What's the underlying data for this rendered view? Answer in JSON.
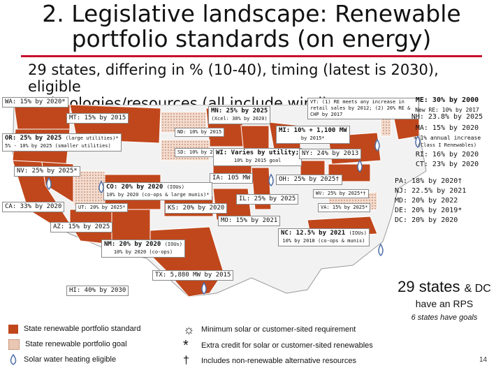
{
  "slide": {
    "title_line1": "2. Legislative landscape: Renewable",
    "title_line2": "portfolio standards (on energy)",
    "subtitle_line1": "29 states, differing in % (10-40), timing (latest is 2030), eligible",
    "subtitle_line2": "technologies/resources (all include wind)",
    "page_number": "14"
  },
  "states": {
    "wa": "WA: 15% by 2020*",
    "mt": "MT: 15% by 2015",
    "mn_main": "MN: 25% by 2025",
    "mn_sub": "(Xcel: 30% by 2020)",
    "or_main": "OR: 25% by 2025",
    "or_note": "(large utilities)*",
    "or_sub": "5% - 10% by 2025 (smaller utilities)",
    "nd": "ND: 10% by 2015",
    "sd": "SD: 10% by 2015",
    "wi_main": "WI: Varies by utility;",
    "wi_sub": "10% by 2015 goal",
    "mi_main": "MI: 10% + 1,100 MW",
    "mi_sub": "by 2015*",
    "ny": "NY: 24% by 2013",
    "vt": "VT: (1) RE meets any increase in retail sales by 2012; (2) 20% RE & CHP by 2017",
    "nv": "NV: 25% by 2025*",
    "ia": "IA: 105 MW",
    "oh": "OH: 25% by 2025†",
    "co_main": "CO: 20% by 2020",
    "co_note": "(IOUs)",
    "co_sub": "10% by 2020 (co-ops & large munis)*",
    "ca": "CA: 33% by 2020",
    "ut": "UT: 20% by 2025*",
    "ks": "KS: 20% by 2020",
    "il": "IL: 25% by 2025",
    "wv": "WV: 25% by 2025*†",
    "va": "VA: 15% by 2025*",
    "mo": "MO: 15% by 2021",
    "az": "AZ: 15% by 2025",
    "nc_main": "NC: 12.5% by 2021",
    "nc_note": "(IOUs)",
    "nc_sub": "10% by 2018 (co-ops & munis)",
    "nm_main": "NM: 20% by 2020",
    "nm_note": "(IOUs)",
    "nm_sub": "10% by 2020 (co-ops)",
    "tx": "TX: 5,880 MW by 2015",
    "hi": "HI: 40% by 2030"
  },
  "right_column": [
    {
      "text": "ME: 30% by 2000"
    },
    {
      "text": "New RE: 10% by 2017"
    },
    {
      "text": "NH: 23.8% by 2025"
    },
    {
      "text": "MA: 15% by 2020"
    },
    {
      "text": "+ 1% annual increase"
    },
    {
      "text": "(Class I Renewables)"
    },
    {
      "text": "RI: 16% by 2020"
    },
    {
      "text": "CT: 23% by 2020"
    },
    {
      "text": "PA: 18% by 2020†"
    },
    {
      "text": "NJ: 22.5% by 2021"
    },
    {
      "text": "MD: 20% by 2022"
    },
    {
      "text": "DE: 20% by 2019*"
    },
    {
      "text": "DC: 20% by 2020"
    }
  ],
  "summary": {
    "count": "29 states",
    "amp": "& DC",
    "line2": "have an RPS",
    "goals": "6 states have goals"
  },
  "legend": {
    "standard": "State renewable portfolio standard",
    "goal": "State renewable portfolio goal",
    "solar_water": "Solar water heating eligible",
    "solar_min": "Minimum solar or customer-sited requirement",
    "extra_credit": "Extra credit for solar or customer-sited renewables",
    "non_renewable": "Includes non-renewable alternative resources"
  },
  "colors": {
    "standard_fill": "#c0471c",
    "goal_fill": "#e9c7b3",
    "water_drop": "#4e6ea8",
    "rule": "#c8102e"
  }
}
